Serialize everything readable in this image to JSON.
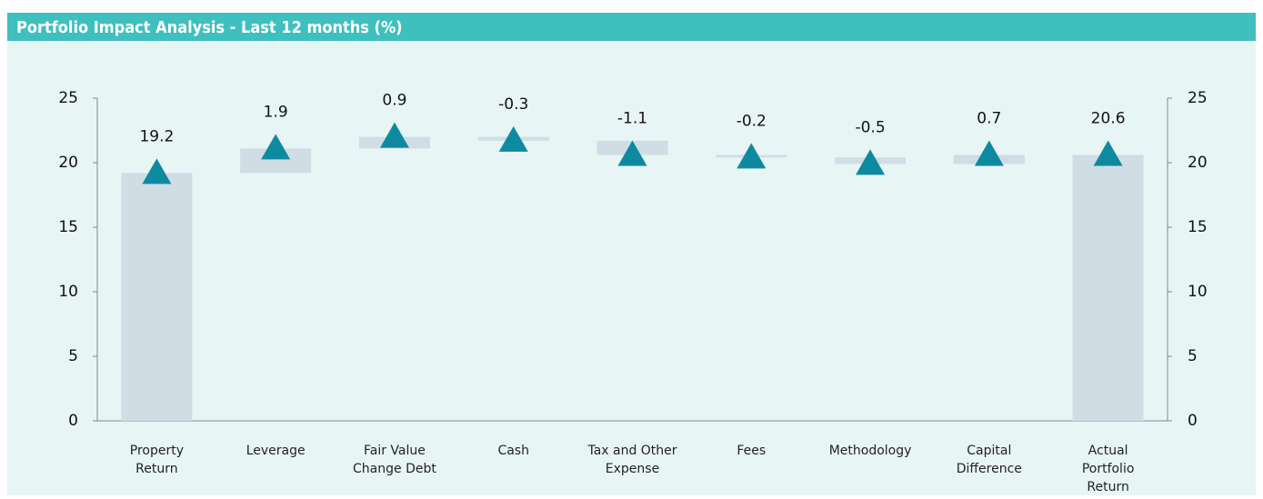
{
  "chart_data": {
    "type": "waterfall",
    "title": "Portfolio Impact Analysis - Last 12 months (%)",
    "categories": [
      "Property Return",
      "Leverage",
      "Fair Value Change Debt",
      "Cash",
      "Tax and Other Expense",
      "Fees",
      "Methodology",
      "Capital Difference",
      "Actual Portfolio Return"
    ],
    "values": [
      19.2,
      1.9,
      0.9,
      -0.3,
      -1.1,
      -0.2,
      -0.5,
      0.7,
      20.6
    ],
    "bar_color": "#d0dde5",
    "marker_color": "#0e8aa0",
    "ylim": [
      0,
      25
    ],
    "yticks": [
      0,
      5,
      10,
      15,
      20,
      25
    ],
    "y2lim": [
      0,
      25
    ],
    "y2ticks": [
      0,
      5,
      10,
      15,
      20,
      25
    ]
  }
}
